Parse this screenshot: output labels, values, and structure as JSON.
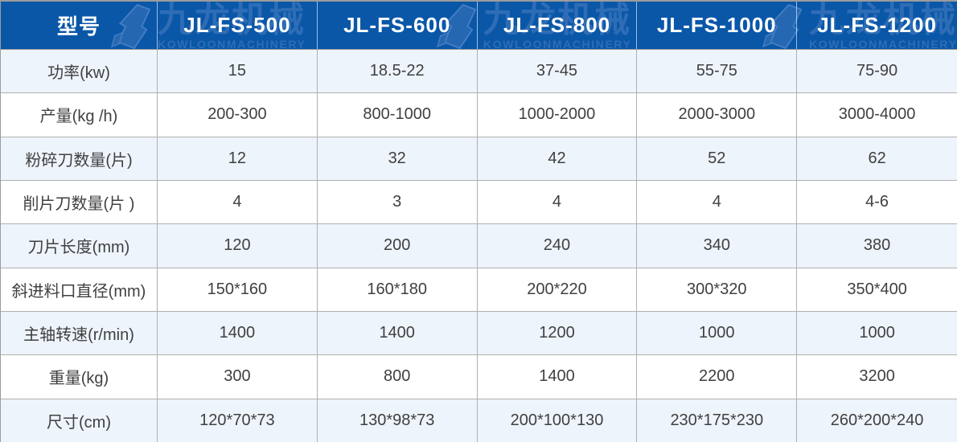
{
  "table": {
    "header": {
      "corner_label": "型号",
      "models": [
        "JL-FS-500",
        "JL-FS-600",
        "JL-FS-800",
        "JL-FS-1000",
        "JL-FS-1200"
      ]
    },
    "rows": [
      {
        "label": "功率(kw)",
        "values": [
          "15",
          "18.5-22",
          "37-45",
          "55-75",
          "75-90"
        ]
      },
      {
        "label": "产量(kg /h)",
        "values": [
          "200-300",
          "800-1000",
          "1000-2000",
          "2000-3000",
          "3000-4000"
        ]
      },
      {
        "label": "粉碎刀数量(片)",
        "values": [
          "12",
          "32",
          "42",
          "52",
          "62"
        ]
      },
      {
        "label": "削片刀数量(片 )",
        "values": [
          "4",
          "3",
          "4",
          "4",
          "4-6"
        ]
      },
      {
        "label": "刀片长度(mm)",
        "values": [
          "120",
          "200",
          "240",
          "340",
          "380"
        ]
      },
      {
        "label": "斜进料口直径(mm)",
        "values": [
          "150*160",
          "160*180",
          "200*220",
          "300*320",
          "350*400"
        ]
      },
      {
        "label": "主轴转速(r/min)",
        "values": [
          "1400",
          "1400",
          "1200",
          "1000",
          "1000"
        ]
      },
      {
        "label": "重量(kg)",
        "values": [
          "300",
          "800",
          "1400",
          "2200",
          "3200"
        ]
      },
      {
        "label": "尺寸(cm)",
        "values": [
          "120*70*73",
          "130*98*73",
          "200*100*130",
          "230*175*230",
          "260*200*240"
        ]
      }
    ]
  },
  "watermark": {
    "chars": "九龙机械",
    "latin": "KOWLOONMACHINERY",
    "repeat": 3
  },
  "colors": {
    "header_bg": "#0a57a8",
    "header_text": "#ffffff",
    "watermark": "#2e6db6",
    "row_alt_bg": "#eef4fb",
    "row_bg": "#ffffff",
    "grid_line": "#b0b0b0",
    "cell_text": "#404040"
  }
}
